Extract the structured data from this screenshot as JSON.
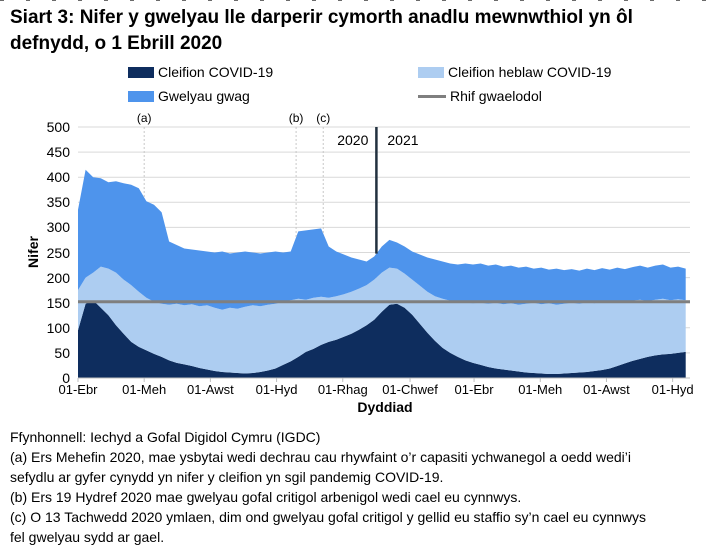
{
  "title": "Siart 3: Nifer y gwelyau lle darperir cymorth anadlu mewnwthiol yn ôl defnydd, o 1 Ebrill 2020",
  "legend": {
    "items": [
      {
        "label": "Cleifion COVID-19",
        "color": "#0E2D5E",
        "marker": "area"
      },
      {
        "label": "Cleifion heblaw COVID-19",
        "color": "#ADCDF1",
        "marker": "area"
      },
      {
        "label": "Gwelyau gwag",
        "color": "#4E94EC",
        "marker": "area"
      },
      {
        "label": "Rhif gwaelodol",
        "color": "#7F7F7F",
        "marker": "line"
      }
    ]
  },
  "chart_data": {
    "type": "area",
    "stacked": true,
    "title": "Siart 3: Nifer y gwelyau lle darperir cymorth anadlu mewnwthiol yn ôl defnydd, o 1 Ebrill 2020",
    "xlabel": "Dyddiad",
    "ylabel": "Nifer",
    "ylim": [
      0,
      500
    ],
    "ytick_step": 50,
    "grid": "horizontal",
    "grid_color": "#D9D9D9",
    "axis_color": "#BFBFBF",
    "x_tick_labels": [
      "01-Ebr",
      "01-Meh",
      "01-Awst",
      "01-Hyd",
      "01-Rhag",
      "01-Chwef",
      "01-Ebr",
      "01-Meh",
      "01-Awst",
      "01-Hyd"
    ],
    "x_tick_days": [
      0,
      61,
      122,
      183,
      244,
      306,
      365,
      426,
      487,
      548
    ],
    "xspan_days": 564,
    "point_interval_days": 7,
    "series": [
      {
        "name": "Cleifion COVID-19",
        "color": "#0E2D5E",
        "values": [
          95,
          148,
          155,
          140,
          125,
          105,
          88,
          72,
          62,
          55,
          48,
          42,
          35,
          30,
          27,
          24,
          20,
          17,
          14,
          12,
          11,
          10,
          9,
          10,
          12,
          15,
          19,
          26,
          33,
          42,
          52,
          58,
          66,
          72,
          76,
          82,
          88,
          96,
          105,
          116,
          132,
          146,
          148,
          140,
          126,
          108,
          90,
          74,
          60,
          50,
          42,
          35,
          30,
          26,
          22,
          19,
          17,
          15,
          13,
          11,
          10,
          9,
          8,
          8,
          9,
          10,
          11,
          12,
          14,
          16,
          19,
          24,
          29,
          34,
          38,
          42,
          45,
          47,
          48,
          50,
          52
        ]
      },
      {
        "name": "Cleifion heblaw COVID-19",
        "color": "#ADCDF1",
        "values": [
          80,
          52,
          55,
          82,
          93,
          105,
          108,
          113,
          110,
          105,
          104,
          106,
          111,
          118,
          118,
          123,
          123,
          128,
          126,
          124,
          129,
          128,
          133,
          135,
          131,
          131,
          129,
          126,
          122,
          116,
          104,
          102,
          96,
          88,
          87,
          85,
          84,
          82,
          80,
          80,
          78,
          74,
          70,
          68,
          70,
          76,
          82,
          89,
          98,
          104,
          110,
          115,
          119,
          124,
          126,
          131,
          130,
          134,
          133,
          137,
          140,
          138,
          141,
          138,
          139,
          140,
          137,
          139,
          135,
          136,
          131,
          129,
          122,
          120,
          118,
          111,
          111,
          111,
          107,
          107,
          103
        ]
      },
      {
        "name": "Gwelyau gwag",
        "color": "#4E94EC",
        "values": [
          160,
          215,
          190,
          176,
          172,
          182,
          192,
          200,
          206,
          192,
          193,
          182,
          126,
          117,
          113,
          109,
          111,
          107,
          110,
          116,
          108,
          112,
          110,
          105,
          105,
          104,
          104,
          98,
          97,
          134,
          138,
          136,
          136,
          102,
          89,
          79,
          68,
          58,
          47,
          46,
          52,
          55,
          52,
          54,
          56,
          62,
          68,
          73,
          74,
          74,
          74,
          78,
          77,
          78,
          76,
          76,
          75,
          75,
          74,
          74,
          68,
          73,
          67,
          72,
          67,
          67,
          66,
          67,
          66,
          67,
          66,
          67,
          66,
          67,
          68,
          67,
          68,
          68,
          65,
          65,
          63
        ]
      }
    ],
    "baseline": {
      "label": "Rhif gwaelodol",
      "value": 152,
      "color": "#7F7F7F"
    },
    "annotations": [
      {
        "label": "(a)",
        "day": 61,
        "line_color": "#C8C8C8"
      },
      {
        "label": "(b)",
        "day": 201,
        "line_color": "#C8C8C8"
      },
      {
        "label": "(c)",
        "day": 226,
        "line_color": "#C8C8C8"
      }
    ],
    "year_divider": {
      "day": 275,
      "left_label": "2020",
      "right_label": "2021",
      "color": "#22313F"
    }
  },
  "footnotes": [
    "Ffynhonnell: Iechyd a Gofal Digidol Cymru (IGDC)",
    "(a) Ers Mehefin 2020, mae ysbytai wedi dechrau cau rhywfaint o’r capasiti ychwanegol a oedd wedi’i sefydlu ar gyfer cynydd yn nifer y cleifion yn sgil pandemig COVID-19.",
    "(b) Ers 19 Hydref 2020 mae gwelyau gofal critigol arbenigol wedi cael eu cynnwys.",
    "(c) O 13 Tachwedd 2020 ymlaen, dim ond gwelyau gofal critigol y gellid eu staffio sy’n cael eu cynnwys fel gwelyau sydd ar gael."
  ]
}
